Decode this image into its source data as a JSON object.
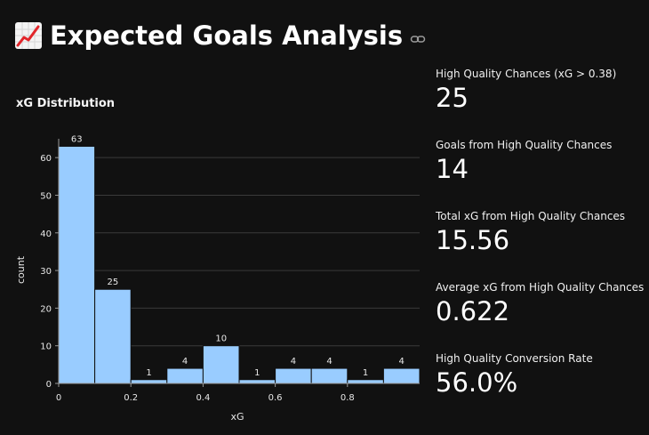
{
  "header": {
    "title": "Expected Goals Analysis"
  },
  "chart_title": "xG Distribution",
  "chart_data": {
    "type": "bar",
    "title": "xG Distribution",
    "xlabel": "xG",
    "ylabel": "count",
    "bin_edges": [
      0,
      0.1,
      0.2,
      0.3,
      0.4,
      0.5,
      0.6,
      0.7,
      0.8,
      0.9,
      1.0
    ],
    "values": [
      63,
      25,
      1,
      4,
      10,
      1,
      4,
      4,
      1,
      4
    ],
    "xlim": [
      0,
      1.0
    ],
    "ylim": [
      0,
      65
    ],
    "x_ticks": [
      0,
      0.2,
      0.4,
      0.6,
      0.8
    ],
    "x_tick_labels": [
      "0",
      "0.2",
      "0.4",
      "0.6",
      "0.8"
    ],
    "y_ticks": [
      0,
      10,
      20,
      30,
      40,
      50,
      60
    ],
    "y_tick_labels": [
      "0",
      "10",
      "20",
      "30",
      "40",
      "50",
      "60"
    ],
    "bar_color": "#99ccff",
    "grid": true
  },
  "metrics": [
    {
      "label": "High Quality Chances (xG > 0.38)",
      "value": "25"
    },
    {
      "label": "Goals from High Quality Chances",
      "value": "14"
    },
    {
      "label": "Total xG from High Quality Chances",
      "value": "15.56"
    },
    {
      "label": "Average xG from High Quality Chances",
      "value": "0.622"
    },
    {
      "label": "High Quality Conversion Rate",
      "value": "56.0%"
    }
  ],
  "icons": {
    "title_icon": "chart-increasing-icon",
    "link_icon": "link-icon"
  }
}
